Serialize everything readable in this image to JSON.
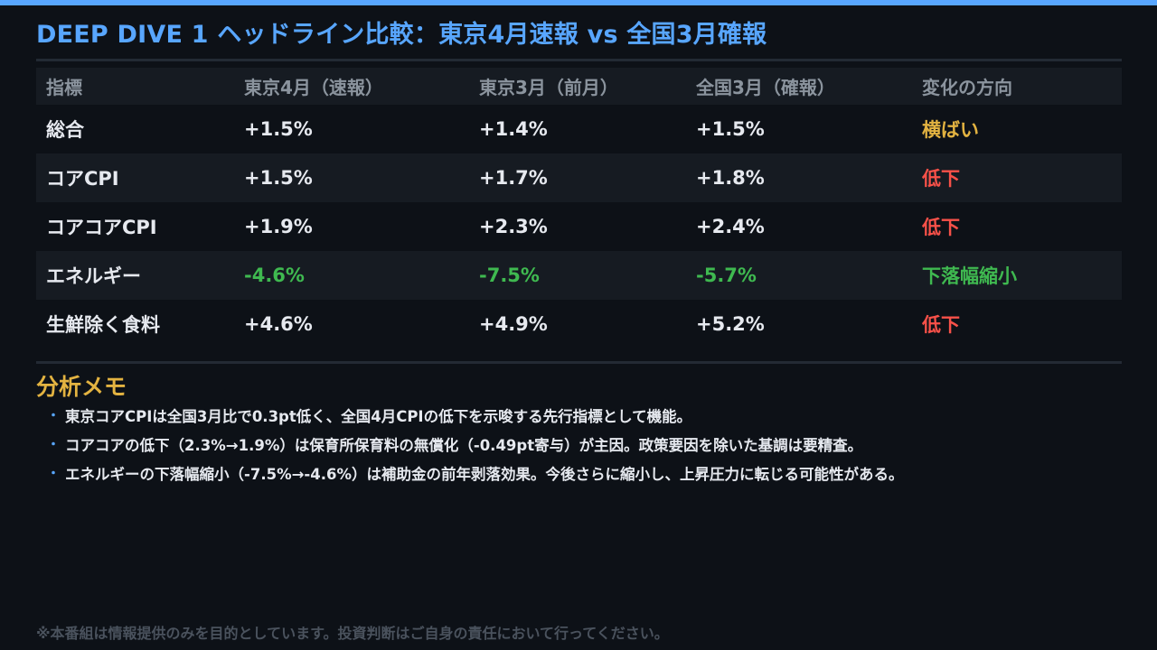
{
  "header": {
    "title": "DEEP DIVE 1  ヘッドライン比較：東京4月速報 vs 全国3月確報",
    "accent_color": "#58a6ff"
  },
  "table": {
    "columns": [
      "指標",
      "東京4月（速報）",
      "東京3月（前月）",
      "全国3月（確報）",
      "変化の方向"
    ],
    "rows": [
      {
        "indicator": "総合",
        "tokyo_apr": "+1.5%",
        "tokyo_mar": "+1.4%",
        "national_mar": "+1.5%",
        "direction": "横ばい",
        "direction_color": "#e3b341"
      },
      {
        "indicator": "コアCPI",
        "tokyo_apr": "+1.5%",
        "tokyo_mar": "+1.7%",
        "national_mar": "+1.8%",
        "direction": "低下",
        "direction_color": "#f85149"
      },
      {
        "indicator": "コアコアCPI",
        "tokyo_apr": "+1.9%",
        "tokyo_mar": "+2.3%",
        "national_mar": "+2.4%",
        "direction": "低下",
        "direction_color": "#f85149"
      },
      {
        "indicator": "エネルギー",
        "tokyo_apr": "-4.6%",
        "tokyo_mar": "-7.5%",
        "national_mar": "-5.7%",
        "direction": "下落幅縮小",
        "direction_color": "#3fb950"
      },
      {
        "indicator": "生鮮除く食料",
        "tokyo_apr": "+4.6%",
        "tokyo_mar": "+4.9%",
        "national_mar": "+5.2%",
        "direction": "低下",
        "direction_color": "#f85149"
      }
    ]
  },
  "memo": {
    "title": "分析メモ",
    "bullet": "・",
    "items": [
      "東京コアCPIは全国3月比で0.3pt低く、全国4月CPIの低下を示唆する先行指標として機能。",
      "コアコアの低下（2.3%→1.9%）は保育所保育料の無償化（-0.49pt寄与）が主因。政策要因を除いた基調は要精査。",
      "エネルギーの下落幅縮小（-7.5%→-4.6%）は補助金の前年剥落効果。今後さらに縮小し、上昇圧力に転じる可能性がある。"
    ]
  },
  "footer": {
    "disclaimer": "※本番組は情報提供のみを目的としています。投資判断はご自身の責任において行ってください。"
  }
}
